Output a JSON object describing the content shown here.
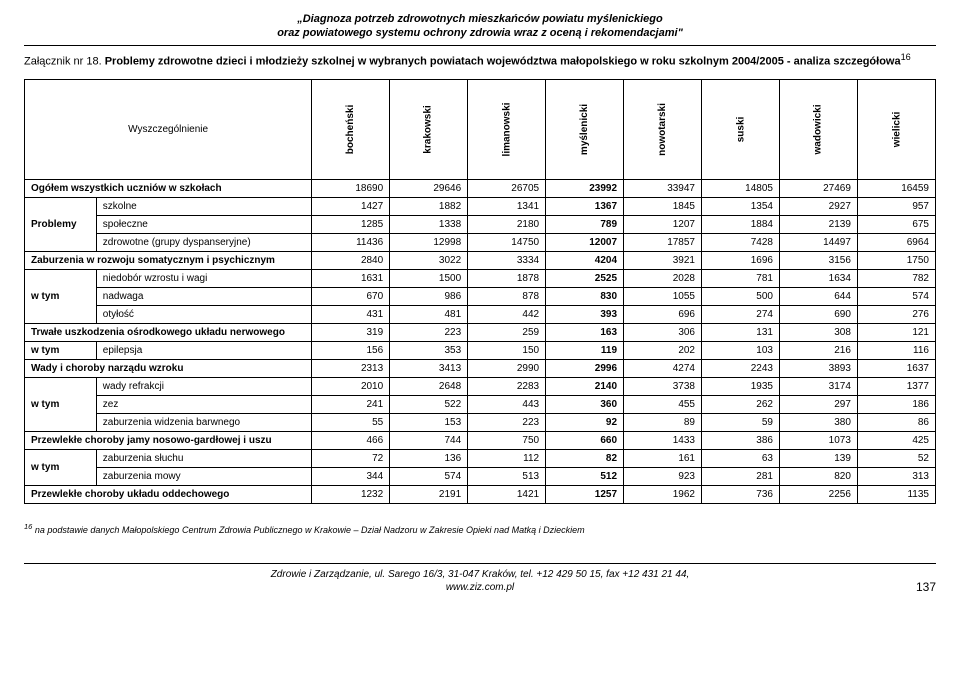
{
  "doc_title_line1": "„Diagnoza potrzeb zdrowotnych mieszkańców powiatu myślenickiego",
  "doc_title_line2": "oraz powiatowego systemu ochrony zdrowia wraz z oceną i rekomendacjami\"",
  "attach_prefix": "Załącznik nr 18. ",
  "attach_bold": "Problemy zdrowotne dzieci i młodzieży szkolnej w wybranych powiatach województwa małopolskiego w roku szkolnym 2004/2005 - analiza szczegółowa",
  "attach_sup": "16",
  "wysz_label": "Wyszczególnienie",
  "cols": [
    "bocheński",
    "krakowski",
    "limanowski",
    "myślenicki",
    "nowotarski",
    "suski",
    "wadowicki",
    "wielicki"
  ],
  "bold_col_index": 3,
  "rows": [
    {
      "type": "span",
      "label": "Ogółem wszystkich uczniów w szkołach",
      "bold": true,
      "vals": [
        18690,
        29646,
        26705,
        23992,
        33947,
        14805,
        27469,
        16459
      ]
    },
    {
      "type": "group",
      "group": "Problemy",
      "subs": [
        {
          "label": "szkolne",
          "vals": [
            1427,
            1882,
            1341,
            1367,
            1845,
            1354,
            2927,
            957
          ]
        },
        {
          "label": "społeczne",
          "vals": [
            1285,
            1338,
            2180,
            789,
            1207,
            1884,
            2139,
            675
          ]
        },
        {
          "label": "zdrowotne (grupy dyspanseryjne)",
          "vals": [
            11436,
            12998,
            14750,
            12007,
            17857,
            7428,
            14497,
            6964
          ]
        }
      ]
    },
    {
      "type": "span",
      "label": "Zaburzenia w rozwoju somatycznym i psychicznym",
      "bold": true,
      "vals": [
        2840,
        3022,
        3334,
        4204,
        3921,
        1696,
        3156,
        1750
      ]
    },
    {
      "type": "group",
      "group": "w tym",
      "subs": [
        {
          "label": "niedobór wzrostu i wagi",
          "vals": [
            1631,
            1500,
            1878,
            2525,
            2028,
            781,
            1634,
            782
          ]
        },
        {
          "label": "nadwaga",
          "vals": [
            670,
            986,
            878,
            830,
            1055,
            500,
            644,
            574
          ]
        },
        {
          "label": "otyłość",
          "vals": [
            431,
            481,
            442,
            393,
            696,
            274,
            690,
            276
          ]
        }
      ]
    },
    {
      "type": "span",
      "label": "Trwałe uszkodzenia ośrodkowego układu nerwowego",
      "bold": true,
      "vals": [
        319,
        223,
        259,
        163,
        306,
        131,
        308,
        121
      ]
    },
    {
      "type": "group",
      "group": "w tym",
      "subs": [
        {
          "label": "epilepsja",
          "vals": [
            156,
            353,
            150,
            119,
            202,
            103,
            216,
            116
          ]
        }
      ]
    },
    {
      "type": "span",
      "label": "Wady i choroby narządu wzroku",
      "bold": true,
      "vals": [
        2313,
        3413,
        2990,
        2996,
        4274,
        2243,
        3893,
        1637
      ]
    },
    {
      "type": "group",
      "group": "w tym",
      "subs": [
        {
          "label": "wady refrakcji",
          "vals": [
            2010,
            2648,
            2283,
            2140,
            3738,
            1935,
            3174,
            1377
          ]
        },
        {
          "label": "zez",
          "vals": [
            241,
            522,
            443,
            360,
            455,
            262,
            297,
            186
          ]
        },
        {
          "label": "zaburzenia widzenia barwnego",
          "vals": [
            55,
            153,
            223,
            92,
            89,
            59,
            380,
            86
          ]
        }
      ]
    },
    {
      "type": "span",
      "label": "Przewlekłe choroby jamy nosowo-gardłowej i uszu",
      "bold": true,
      "vals": [
        466,
        744,
        750,
        660,
        1433,
        386,
        1073,
        425
      ]
    },
    {
      "type": "group",
      "group": "w tym",
      "subs": [
        {
          "label": "zaburzenia słuchu",
          "vals": [
            72,
            136,
            112,
            82,
            161,
            63,
            139,
            52
          ]
        },
        {
          "label": "zaburzenia mowy",
          "vals": [
            344,
            574,
            513,
            512,
            923,
            281,
            820,
            313
          ]
        }
      ]
    },
    {
      "type": "span",
      "label": "Przewlekłe choroby układu oddechowego",
      "bold": true,
      "vals": [
        1232,
        2191,
        1421,
        1257,
        1962,
        736,
        2256,
        1135
      ]
    }
  ],
  "footnote_sup": "16",
  "footnote_text": " na podstawie danych Małopolskiego Centrum Zdrowia Publicznego w Krakowie – Dział Nadzoru w Zakresie Opieki nad Matką i Dzieckiem",
  "footer_center_line1": "Zdrowie i Zarządzanie, ul. Sarego 16/3, 31-047 Kraków, tel. +12 429 50 15, fax +12 431 21 44,",
  "footer_center_line2": "www.ziz.com.pl",
  "page_number": "137"
}
